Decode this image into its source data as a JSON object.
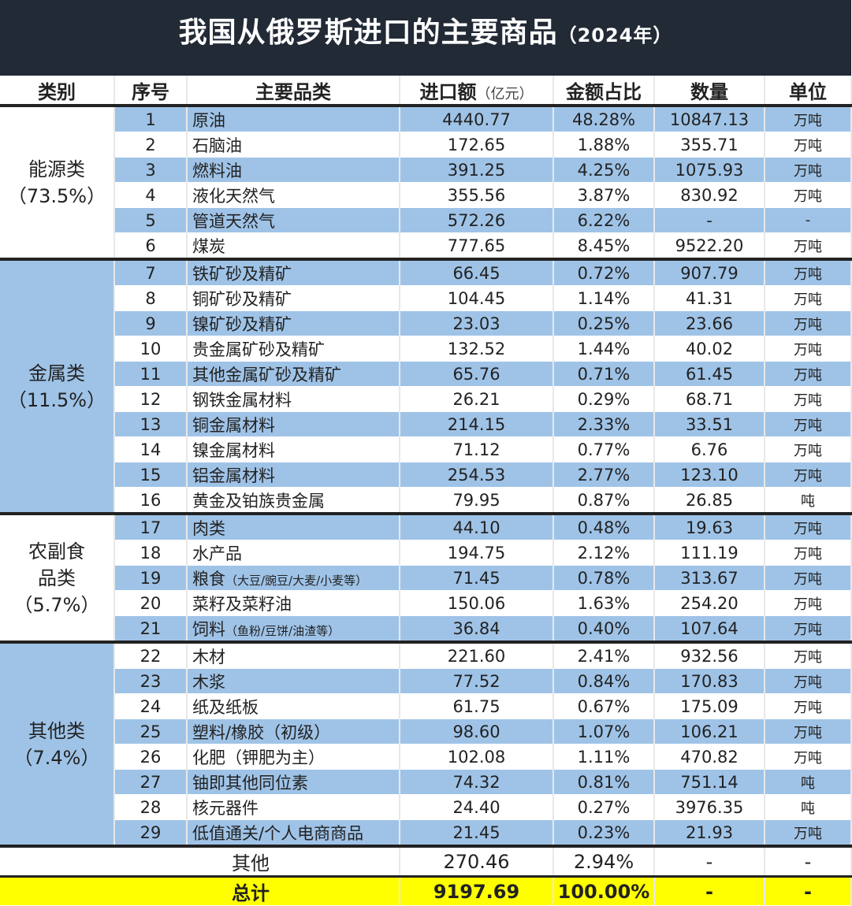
{
  "title": "我国从俄罗斯进口的主要商品",
  "title_year": "（2024年）",
  "headers": {
    "category": "类别",
    "seq": "序号",
    "item": "主要品类",
    "amount": "进口额",
    "amount_unit": "（亿元）",
    "share": "金额占比",
    "quantity": "数量",
    "unit": "单位"
  },
  "colors": {
    "header_bg": "#222a36",
    "stripe": "#9fc3e7",
    "total_bg": "#ffff00"
  },
  "groups": [
    {
      "label": "能源类",
      "share": "（73.5%）",
      "rows": [
        {
          "seq": "1",
          "name": "原油",
          "note": "",
          "amount": "4440.77",
          "share": "48.28%",
          "qty": "10847.13",
          "unit": "万吨"
        },
        {
          "seq": "2",
          "name": "石脑油",
          "note": "",
          "amount": "172.65",
          "share": "1.88%",
          "qty": "355.71",
          "unit": "万吨"
        },
        {
          "seq": "3",
          "name": "燃料油",
          "note": "",
          "amount": "391.25",
          "share": "4.25%",
          "qty": "1075.93",
          "unit": "万吨"
        },
        {
          "seq": "4",
          "name": "液化天然气",
          "note": "",
          "amount": "355.56",
          "share": "3.87%",
          "qty": "830.92",
          "unit": "万吨"
        },
        {
          "seq": "5",
          "name": "管道天然气",
          "note": "",
          "amount": "572.26",
          "share": "6.22%",
          "qty": "-",
          "unit": "-"
        },
        {
          "seq": "6",
          "name": "煤炭",
          "note": "",
          "amount": "777.65",
          "share": "8.45%",
          "qty": "9522.20",
          "unit": "万吨"
        }
      ]
    },
    {
      "label": "金属类",
      "share": "（11.5%）",
      "rows": [
        {
          "seq": "7",
          "name": "铁矿砂及精矿",
          "note": "",
          "amount": "66.45",
          "share": "0.72%",
          "qty": "907.79",
          "unit": "万吨"
        },
        {
          "seq": "8",
          "name": "铜矿砂及精矿",
          "note": "",
          "amount": "104.45",
          "share": "1.14%",
          "qty": "41.31",
          "unit": "万吨"
        },
        {
          "seq": "9",
          "name": "镍矿砂及精矿",
          "note": "",
          "amount": "23.03",
          "share": "0.25%",
          "qty": "23.66",
          "unit": "万吨"
        },
        {
          "seq": "10",
          "name": "贵金属矿砂及精矿",
          "note": "",
          "amount": "132.52",
          "share": "1.44%",
          "qty": "40.02",
          "unit": "万吨"
        },
        {
          "seq": "11",
          "name": "其他金属矿砂及精矿",
          "note": "",
          "amount": "65.76",
          "share": "0.71%",
          "qty": "61.45",
          "unit": "万吨"
        },
        {
          "seq": "12",
          "name": "钢铁金属材料",
          "note": "",
          "amount": "26.21",
          "share": "0.29%",
          "qty": "68.71",
          "unit": "万吨"
        },
        {
          "seq": "13",
          "name": "铜金属材料",
          "note": "",
          "amount": "214.15",
          "share": "2.33%",
          "qty": "33.51",
          "unit": "万吨"
        },
        {
          "seq": "14",
          "name": "镍金属材料",
          "note": "",
          "amount": "71.12",
          "share": "0.77%",
          "qty": "6.76",
          "unit": "万吨"
        },
        {
          "seq": "15",
          "name": "铝金属材料",
          "note": "",
          "amount": "254.53",
          "share": "2.77%",
          "qty": "123.10",
          "unit": "万吨"
        },
        {
          "seq": "16",
          "name": "黄金及铂族贵金属",
          "note": "",
          "amount": "79.95",
          "share": "0.87%",
          "qty": "26.85",
          "unit": "吨"
        }
      ]
    },
    {
      "label": "农副食品类",
      "share": "（5.7%）",
      "rows": [
        {
          "seq": "17",
          "name": "肉类",
          "note": "",
          "amount": "44.10",
          "share": "0.48%",
          "qty": "19.63",
          "unit": "万吨"
        },
        {
          "seq": "18",
          "name": "水产品",
          "note": "",
          "amount": "194.75",
          "share": "2.12%",
          "qty": "111.19",
          "unit": "万吨"
        },
        {
          "seq": "19",
          "name": "粮食",
          "note": "（大豆/豌豆/大麦/小麦等）",
          "amount": "71.45",
          "share": "0.78%",
          "qty": "313.67",
          "unit": "万吨"
        },
        {
          "seq": "20",
          "name": "菜籽及菜籽油",
          "note": "",
          "amount": "150.06",
          "share": "1.63%",
          "qty": "254.20",
          "unit": "万吨"
        },
        {
          "seq": "21",
          "name": "饲料",
          "note": "（鱼粉/豆饼/油渣等）",
          "amount": "36.84",
          "share": "0.40%",
          "qty": "107.64",
          "unit": "万吨"
        }
      ]
    },
    {
      "label": "其他类",
      "share": "（7.4%）",
      "rows": [
        {
          "seq": "22",
          "name": "木材",
          "note": "",
          "amount": "221.60",
          "share": "2.41%",
          "qty": "932.56",
          "unit": "万吨"
        },
        {
          "seq": "23",
          "name": "木浆",
          "note": "",
          "amount": "77.52",
          "share": "0.84%",
          "qty": "170.83",
          "unit": "万吨"
        },
        {
          "seq": "24",
          "name": "纸及纸板",
          "note": "",
          "amount": "61.75",
          "share": "0.67%",
          "qty": "175.09",
          "unit": "万吨"
        },
        {
          "seq": "25",
          "name": "塑料/橡胶（初级）",
          "note": "",
          "amount": "98.60",
          "share": "1.07%",
          "qty": "106.21",
          "unit": "万吨"
        },
        {
          "seq": "26",
          "name": "化肥（钾肥为主）",
          "note": "",
          "amount": "102.08",
          "share": "1.11%",
          "qty": "470.82",
          "unit": "万吨"
        },
        {
          "seq": "27",
          "name": "铀即其他同位素",
          "note": "",
          "amount": "74.32",
          "share": "0.81%",
          "qty": "751.14",
          "unit": "吨"
        },
        {
          "seq": "28",
          "name": "核元器件",
          "note": "",
          "amount": "24.40",
          "share": "0.27%",
          "qty": "3976.35",
          "unit": "吨"
        },
        {
          "seq": "29",
          "name": "低值通关/个人电商商品",
          "note": "",
          "amount": "21.45",
          "share": "0.23%",
          "qty": "21.93",
          "unit": "万吨"
        }
      ]
    }
  ],
  "other": {
    "label": "其他",
    "amount": "270.46",
    "share": "2.94%",
    "qty": "-",
    "unit": "-"
  },
  "total": {
    "label": "总计",
    "amount": "9197.69",
    "share": "100.00%",
    "qty": "-",
    "unit": "-"
  }
}
